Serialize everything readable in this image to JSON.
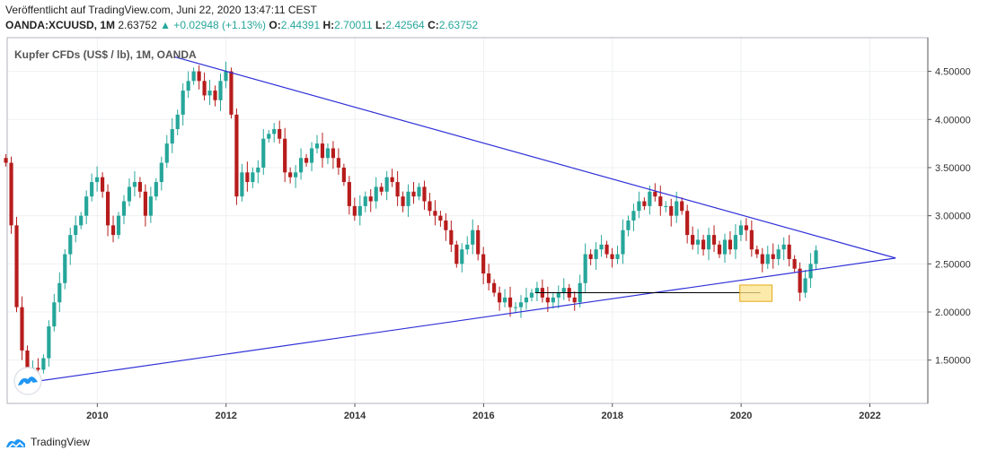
{
  "header": {
    "published": "Veröffentlicht auf TradingView.com, Juni 22, 2020 13:47:11 CEST",
    "symbol": "OANDA:XCUUSD, 1M",
    "last": "2.63752",
    "change": "▲ +0.02948 (+1.13%)",
    "o_label": "O:",
    "o_value": "2.44391",
    "h_label": "H:",
    "h_value": "2.70011",
    "l_label": "L:",
    "l_value": "2.42564",
    "c_label": "C:",
    "c_value": "2.63752"
  },
  "footer": {
    "brand": "TradingView",
    "logo_icon": "tradingview-logo-icon"
  },
  "colors": {
    "up": "#26a69a",
    "down": "#b71c1c",
    "trend": "#3030d8",
    "highlight_fill": "#fbe38e",
    "highlight_stroke": "#e6a817"
  },
  "chart_data": {
    "type": "candlestick",
    "title": "Kupfer CFDs (US$ / lb), 1M, OANDA",
    "xlabel": "",
    "ylabel": "",
    "x_ticks": [
      "2010",
      "2012",
      "2014",
      "2016",
      "2018",
      "2020",
      "2022"
    ],
    "y_ticks": [
      "1.50000",
      "2.00000",
      "2.50000",
      "3.00000",
      "3.50000",
      "4.00000",
      "4.50000"
    ],
    "xlim": [
      2008.6,
      2022.9
    ],
    "ylim": [
      1.05,
      4.85
    ],
    "grid": true,
    "closes": [
      3.55,
      2.9,
      2.05,
      1.6,
      1.4,
      1.42,
      1.4,
      1.52,
      1.85,
      2.1,
      2.3,
      2.6,
      2.8,
      2.9,
      3.0,
      3.2,
      3.35,
      3.4,
      3.25,
      2.9,
      2.8,
      3.0,
      3.15,
      3.3,
      3.35,
      3.25,
      3.0,
      3.2,
      3.35,
      3.55,
      3.75,
      3.9,
      4.05,
      4.3,
      4.4,
      4.5,
      4.4,
      4.25,
      4.3,
      4.2,
      4.4,
      4.5,
      4.05,
      3.2,
      3.45,
      3.35,
      3.45,
      3.5,
      3.8,
      3.85,
      3.9,
      3.8,
      3.45,
      3.4,
      3.45,
      3.6,
      3.55,
      3.7,
      3.75,
      3.6,
      3.7,
      3.6,
      3.5,
      3.35,
      3.1,
      3.0,
      3.1,
      3.2,
      3.15,
      3.3,
      3.25,
      3.4,
      3.35,
      3.2,
      3.1,
      3.25,
      3.2,
      3.3,
      3.15,
      3.05,
      3.0,
      2.95,
      2.85,
      2.7,
      2.5,
      2.65,
      2.7,
      2.85,
      2.6,
      2.4,
      2.3,
      2.2,
      2.1,
      2.15,
      2.05,
      2.05,
      2.1,
      2.15,
      2.2,
      2.25,
      2.15,
      2.1,
      2.15,
      2.2,
      2.25,
      2.15,
      2.1,
      2.3,
      2.6,
      2.55,
      2.65,
      2.7,
      2.6,
      2.55,
      2.6,
      2.85,
      2.95,
      3.05,
      3.15,
      3.1,
      3.25,
      3.2,
      3.1,
      3.1,
      3.0,
      3.15,
      3.05,
      2.8,
      2.7,
      2.75,
      2.65,
      2.8,
      2.7,
      2.6,
      2.75,
      2.65,
      2.8,
      2.9,
      2.85,
      2.65,
      2.6,
      2.5,
      2.6,
      2.55,
      2.65,
      2.7,
      2.55,
      2.45,
      2.2,
      2.35,
      2.5,
      2.64
    ],
    "wicks_note": "",
    "trendlines": [
      {
        "from": [
          2011.2,
          4.65
        ],
        "to": [
          2022.4,
          2.56
        ]
      },
      {
        "from": [
          2008.75,
          1.25
        ],
        "to": [
          2022.4,
          2.56
        ]
      }
    ],
    "support": {
      "from": [
        2016.8,
        2.2
      ],
      "to": [
        2020.3,
        2.2
      ]
    },
    "highlight": {
      "x": [
        2019.98,
        2020.48
      ],
      "y": [
        2.11,
        2.28
      ]
    }
  }
}
